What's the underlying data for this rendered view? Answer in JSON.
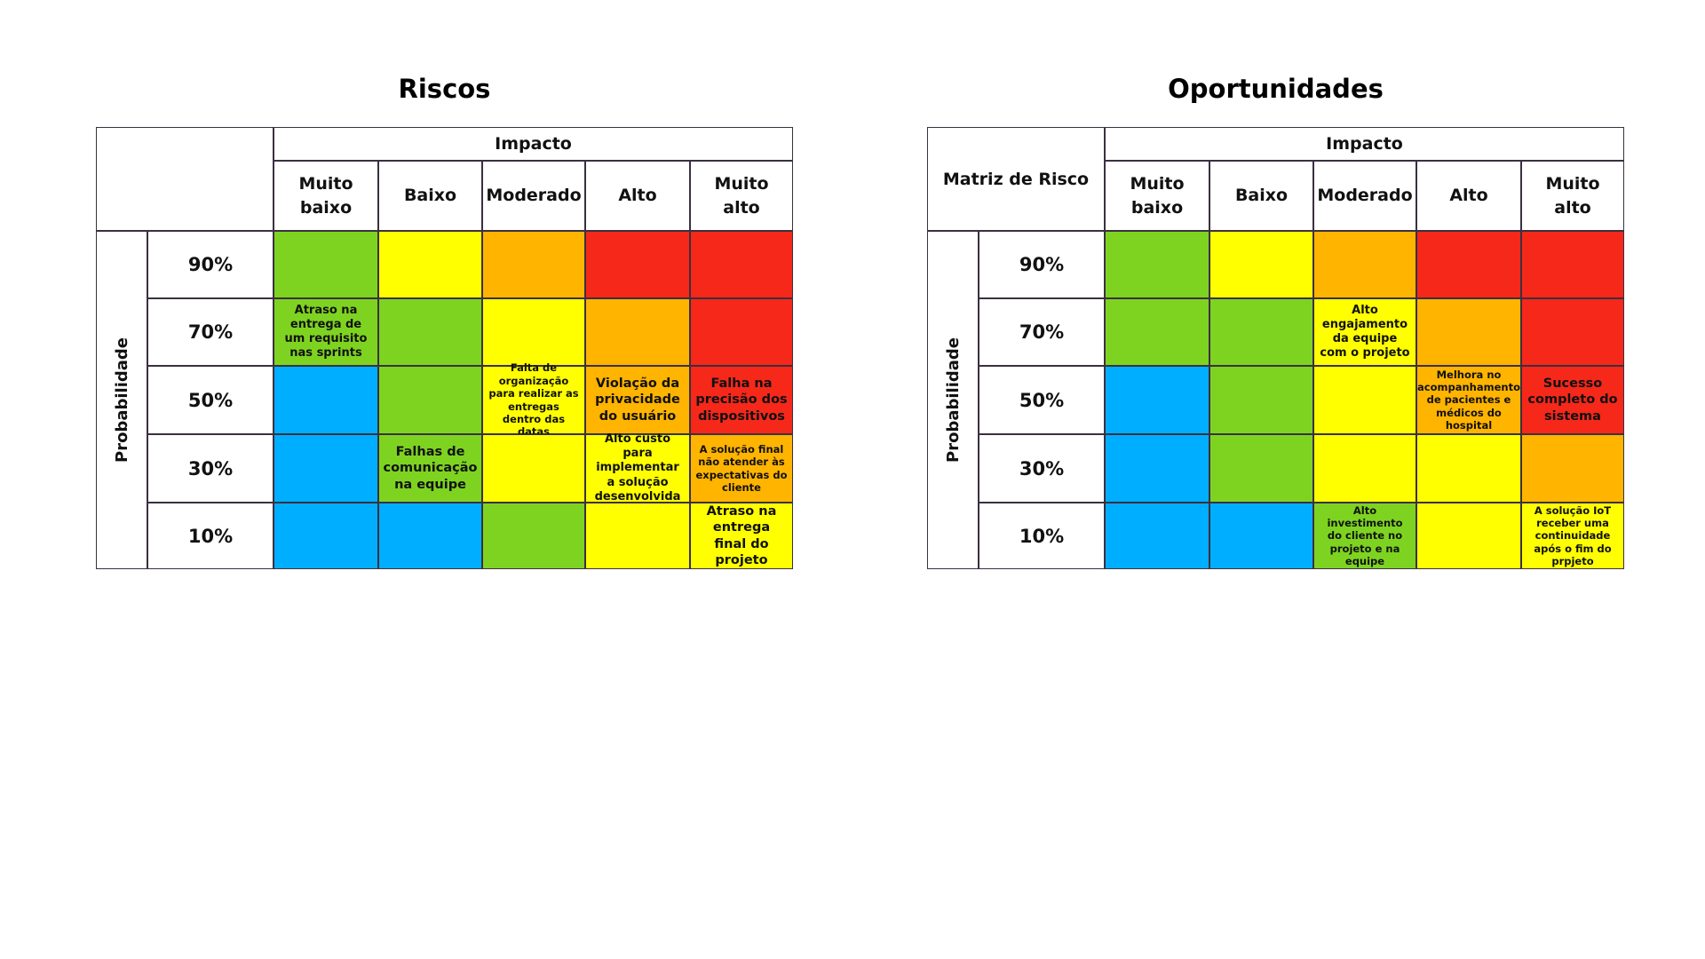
{
  "matrices": [
    {
      "title": "Riscos",
      "impact_label": "Impacto",
      "probability_label": "Probabilidade",
      "columns": [
        "Muito baixo",
        "Baixo",
        "Moderado",
        "Alto",
        "Muito alto"
      ],
      "rows": [
        {
          "label": "90%",
          "cells": [
            {
              "color": "#7ed321"
            },
            {
              "color": "#ffff00"
            },
            {
              "color": "#ffb400"
            },
            {
              "color": "#f5281a"
            },
            {
              "color": "#f5281a"
            }
          ]
        },
        {
          "label": "70%",
          "cells": [
            {
              "color": "#7ed321",
              "text": "Atraso na entrega de um requisito nas sprints"
            },
            {
              "color": "#7ed321"
            },
            {
              "color": "#ffff00"
            },
            {
              "color": "#ffb400"
            },
            {
              "color": "#f5281a"
            }
          ]
        },
        {
          "label": "50%",
          "cells": [
            {
              "color": "#00aeff"
            },
            {
              "color": "#7ed321"
            },
            {
              "color": "#ffff00",
              "text": "Falta de organização para realizar as entregas dentro das datas"
            },
            {
              "color": "#ffb400",
              "text": "Violação da privacidade do usuário"
            },
            {
              "color": "#f5281a",
              "text": "Falha na precisão dos dispositivos"
            }
          ]
        },
        {
          "label": "30%",
          "cells": [
            {
              "color": "#00aeff"
            },
            {
              "color": "#7ed321",
              "text": "Falhas de comunicação na equipe"
            },
            {
              "color": "#ffff00"
            },
            {
              "color": "#ffff00",
              "text": "Alto custo para implementar a solução desenvolvida"
            },
            {
              "color": "#ffb400",
              "text": "A solução final não atender às expectativas do cliente"
            }
          ]
        },
        {
          "label": "10%",
          "cells": [
            {
              "color": "#00aeff"
            },
            {
              "color": "#00aeff"
            },
            {
              "color": "#7ed321"
            },
            {
              "color": "#ffff00"
            },
            {
              "color": "#ffff00",
              "text": "Atraso na entrega final do projeto"
            }
          ]
        }
      ]
    },
    {
      "title": "Oportunidades",
      "corner": "Matriz de Risco",
      "impact_label": "Impacto",
      "probability_label": "Probabilidade",
      "columns": [
        "Muito baixo",
        "Baixo",
        "Moderado",
        "Alto",
        "Muito alto"
      ],
      "rows": [
        {
          "label": "90%",
          "cells": [
            {
              "color": "#7ed321"
            },
            {
              "color": "#ffff00"
            },
            {
              "color": "#ffb400"
            },
            {
              "color": "#f5281a"
            },
            {
              "color": "#f5281a"
            }
          ]
        },
        {
          "label": "70%",
          "cells": [
            {
              "color": "#7ed321"
            },
            {
              "color": "#7ed321"
            },
            {
              "color": "#ffff00",
              "text": "Alto engajamento da equipe com o projeto"
            },
            {
              "color": "#ffb400"
            },
            {
              "color": "#f5281a"
            }
          ]
        },
        {
          "label": "50%",
          "cells": [
            {
              "color": "#00aeff"
            },
            {
              "color": "#7ed321"
            },
            {
              "color": "#ffff00"
            },
            {
              "color": "#ffb400",
              "text": "Melhora no acompanhamento de pacientes e médicos do hospital"
            },
            {
              "color": "#f5281a",
              "text": "Sucesso completo do sistema"
            }
          ]
        },
        {
          "label": "30%",
          "cells": [
            {
              "color": "#00aeff"
            },
            {
              "color": "#7ed321"
            },
            {
              "color": "#ffff00"
            },
            {
              "color": "#ffff00"
            },
            {
              "color": "#ffb400"
            }
          ]
        },
        {
          "label": "10%",
          "cells": [
            {
              "color": "#00aeff"
            },
            {
              "color": "#00aeff"
            },
            {
              "color": "#7ed321",
              "text": "Alto investimento do cliente no projeto e na equipe"
            },
            {
              "color": "#ffff00"
            },
            {
              "color": "#ffff00",
              "text": "A solução IoT receber uma continuidade após o fim do prpjeto"
            }
          ]
        }
      ]
    }
  ]
}
